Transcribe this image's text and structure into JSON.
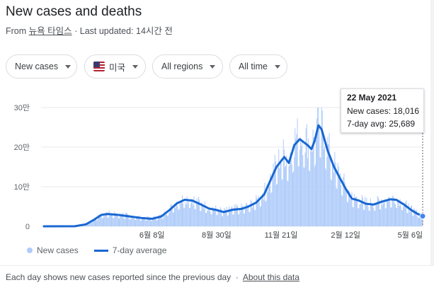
{
  "header": {
    "title": "New cases and deaths",
    "source_prefix": "From",
    "source_name": "뉴욕 타임스",
    "updated": "· Last updated: 14시간 전"
  },
  "filters": [
    {
      "label": "New cases"
    },
    {
      "label": "미국",
      "flag": "us-flag-icon"
    },
    {
      "label": "All regions"
    },
    {
      "label": "All time"
    }
  ],
  "tooltip": {
    "date": "22 May 2021",
    "new_cases": "New cases: 18,016",
    "avg": "7-day avg: 25,689"
  },
  "legend": {
    "new_cases": "New cases",
    "avg": "7-day average"
  },
  "footer": {
    "note": "Each day shows new cases reported since the previous day",
    "sep": "·",
    "about": "About this data"
  },
  "colors": {
    "bars": "#aecbfa",
    "line": "#1967d2",
    "marker": "#4285f4"
  },
  "chart_data": {
    "type": "bar",
    "title": "",
    "xlabel": "",
    "ylabel": "",
    "ylim": [
      0,
      300000
    ],
    "y_ticks": [
      {
        "value": 0,
        "label": "0"
      },
      {
        "value": 100000,
        "label": "10만"
      },
      {
        "value": 200000,
        "label": "20만"
      },
      {
        "value": 300000,
        "label": "30만"
      }
    ],
    "x_ticks": [
      "6월 8일",
      "8월 30일",
      "11월 21일",
      "2월 12일",
      "5월 6일"
    ],
    "x_range": [
      "2020-01-21",
      "2021-05-22"
    ],
    "series": [
      {
        "name": "7-day average",
        "points": [
          [
            "2020-01-21",
            0
          ],
          [
            "2020-03-01",
            100
          ],
          [
            "2020-03-15",
            5000
          ],
          [
            "2020-03-25",
            16000
          ],
          [
            "2020-04-04",
            29000
          ],
          [
            "2020-04-12",
            31000
          ],
          [
            "2020-04-25",
            29000
          ],
          [
            "2020-05-10",
            25000
          ],
          [
            "2020-05-25",
            21000
          ],
          [
            "2020-06-08",
            19000
          ],
          [
            "2020-06-20",
            25000
          ],
          [
            "2020-07-01",
            42000
          ],
          [
            "2020-07-10",
            58000
          ],
          [
            "2020-07-20",
            67000
          ],
          [
            "2020-07-30",
            65000
          ],
          [
            "2020-08-10",
            55000
          ],
          [
            "2020-08-20",
            45000
          ],
          [
            "2020-08-30",
            41000
          ],
          [
            "2020-09-08",
            36000
          ],
          [
            "2020-09-20",
            42000
          ],
          [
            "2020-10-01",
            44000
          ],
          [
            "2020-10-10",
            50000
          ],
          [
            "2020-10-20",
            60000
          ],
          [
            "2020-10-30",
            80000
          ],
          [
            "2020-11-07",
            115000
          ],
          [
            "2020-11-15",
            150000
          ],
          [
            "2020-11-25",
            175000
          ],
          [
            "2020-12-01",
            160000
          ],
          [
            "2020-12-08",
            205000
          ],
          [
            "2020-12-15",
            220000
          ],
          [
            "2020-12-25",
            205000
          ],
          [
            "2020-12-30",
            195000
          ],
          [
            "2021-01-03",
            215000
          ],
          [
            "2021-01-08",
            255000
          ],
          [
            "2021-01-12",
            245000
          ],
          [
            "2021-01-20",
            190000
          ],
          [
            "2021-01-28",
            150000
          ],
          [
            "2021-02-05",
            120000
          ],
          [
            "2021-02-12",
            95000
          ],
          [
            "2021-02-20",
            70000
          ],
          [
            "2021-03-01",
            65000
          ],
          [
            "2021-03-10",
            57000
          ],
          [
            "2021-03-20",
            55000
          ],
          [
            "2021-03-30",
            62000
          ],
          [
            "2021-04-10",
            68000
          ],
          [
            "2021-04-18",
            67000
          ],
          [
            "2021-04-28",
            55000
          ],
          [
            "2021-05-08",
            40000
          ],
          [
            "2021-05-15",
            32000
          ],
          [
            "2021-05-22",
            25689
          ]
        ]
      },
      {
        "name": "New cases",
        "description": "daily bars fluctuating around the 7-day average, peaking near 300000 in January 2021"
      }
    ]
  }
}
